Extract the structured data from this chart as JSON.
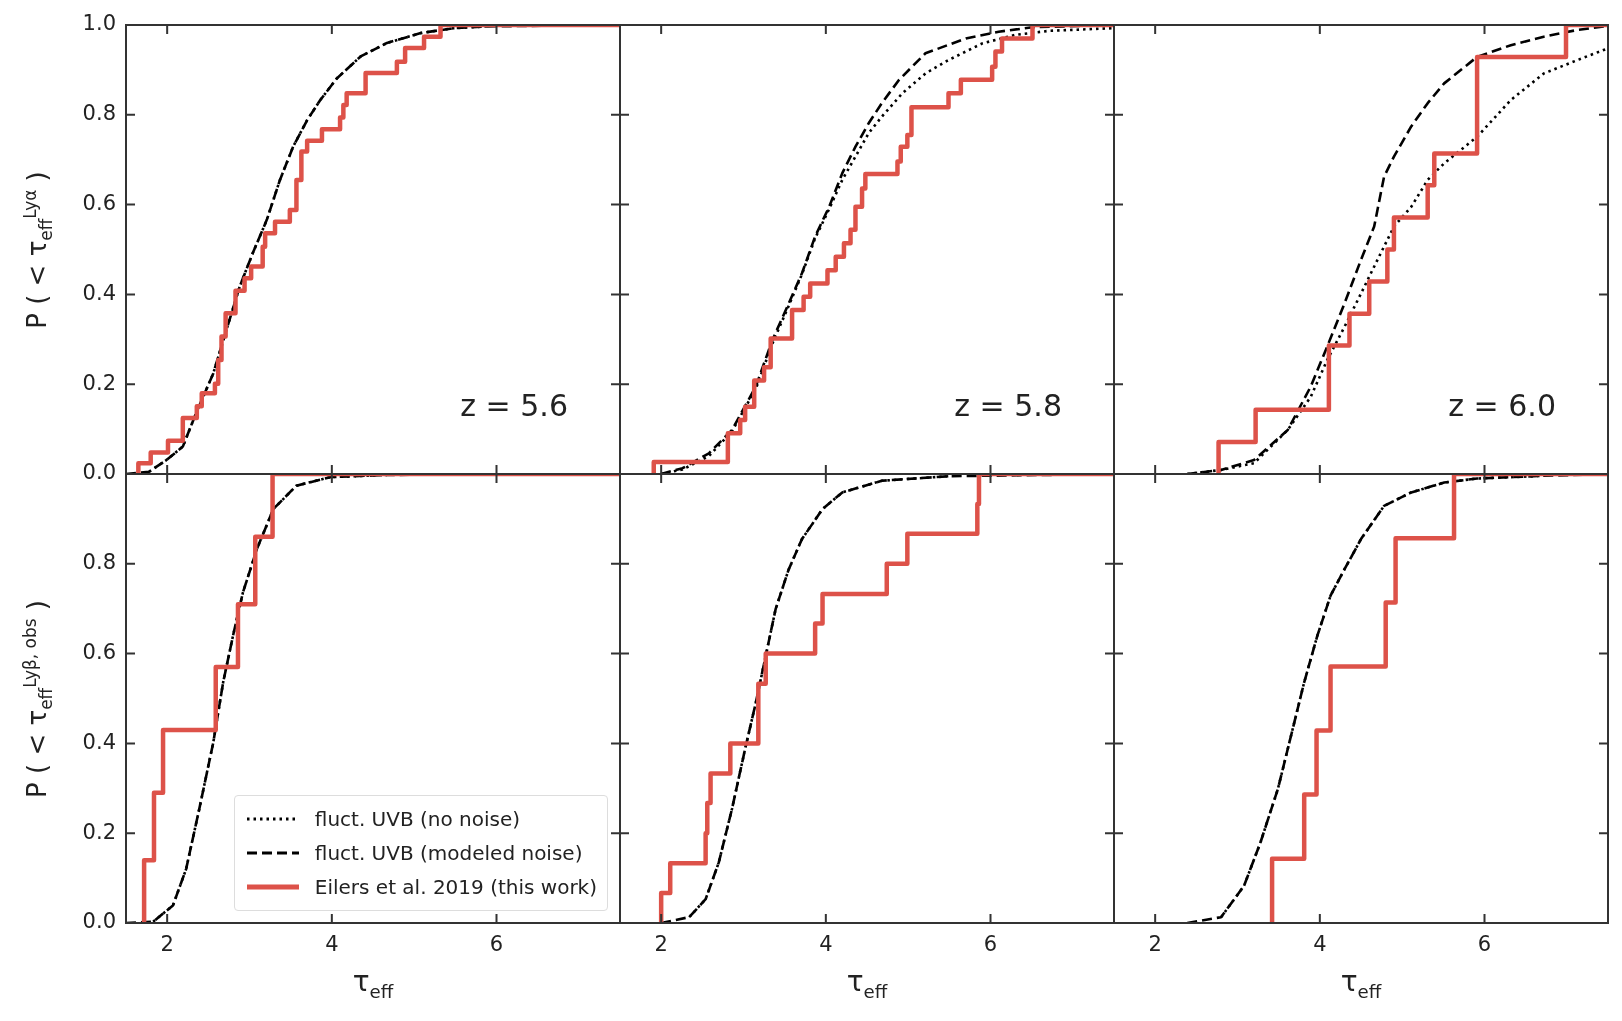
{
  "chart_data": [
    {
      "type": "line",
      "ylabel": "P ( < τ$_{eff}$$^{Lyα}$ )",
      "xlim": [
        1.5,
        7.5
      ],
      "xticks": [
        2,
        4,
        6
      ],
      "ylim": [
        0,
        1
      ],
      "yticks": [
        {
          "value": 0,
          "label": "0.0"
        },
        {
          "value": 0.2,
          "label": "0.2"
        },
        {
          "value": 0.4,
          "label": "0.4"
        },
        {
          "value": 0.6,
          "label": "0.6"
        },
        {
          "value": 0.8,
          "label": "0.8"
        },
        {
          "value": 1,
          "label": "1.0"
        }
      ],
      "tick_labels": "y",
      "annotations": [
        "z = 5.6"
      ],
      "series": [
        {
          "type": "line",
          "line_style": "dotted",
          "color": "#000000",
          "x": [
            1.78,
            1.99,
            2.19,
            2.35,
            2.56,
            2.72,
            2.88,
            3.04,
            3.21,
            3.37,
            3.53,
            3.7,
            3.86,
            4.06,
            4.35,
            4.67,
            5.08,
            5.48,
            5.89
          ],
          "values": [
            0.005,
            0.031,
            0.061,
            0.135,
            0.224,
            0.321,
            0.417,
            0.492,
            0.566,
            0.655,
            0.729,
            0.788,
            0.833,
            0.881,
            0.93,
            0.96,
            0.982,
            0.993,
            0.997
          ]
        },
        {
          "type": "line",
          "line_style": "dashed",
          "color": "#000000",
          "x": [
            1.5,
            1.78,
            1.99,
            2.19,
            2.35,
            2.56,
            2.72,
            2.88,
            3.04,
            3.21,
            3.37,
            3.53,
            3.7,
            3.86,
            4.06,
            4.35,
            4.67,
            5.08,
            5.48,
            5.89,
            7.5
          ],
          "values": [
            0,
            0.005,
            0.031,
            0.061,
            0.135,
            0.224,
            0.321,
            0.417,
            0.492,
            0.566,
            0.655,
            0.729,
            0.788,
            0.833,
            0.881,
            0.93,
            0.96,
            0.982,
            0.993,
            0.997,
            1.0
          ]
        },
        {
          "type": "step",
          "line_style": "solid",
          "color": "#dd5249",
          "x": [
            1.65,
            1.65,
            1.8,
            2.01,
            2.19,
            2.36,
            2.42,
            2.58,
            2.62,
            2.66,
            2.71,
            2.83,
            2.94,
            3.02,
            3.16,
            3.19,
            3.31,
            3.49,
            3.57,
            3.63,
            3.7,
            3.88,
            4.1,
            4.14,
            4.18,
            4.41,
            4.79,
            4.89,
            5.12,
            5.32,
            7.5
          ],
          "values": [
            0,
            0.024,
            0.048,
            0.074,
            0.125,
            0.151,
            0.18,
            0.201,
            0.254,
            0.306,
            0.358,
            0.408,
            0.436,
            0.462,
            0.506,
            0.536,
            0.562,
            0.588,
            0.655,
            0.718,
            0.742,
            0.768,
            0.794,
            0.822,
            0.848,
            0.893,
            0.918,
            0.949,
            0.974,
            1.0,
            1.0
          ]
        }
      ]
    },
    {
      "type": "line",
      "xlim": [
        1.5,
        7.5
      ],
      "xticks": [
        2,
        4,
        6
      ],
      "ylim": [
        0,
        1
      ],
      "yticks": [
        0,
        0.2,
        0.4,
        0.6,
        0.8,
        1
      ],
      "tick_labels": false,
      "annotations": [
        "z = 5.8"
      ],
      "series": [
        {
          "type": "line",
          "line_style": "dotted",
          "color": "#000000",
          "x": [
            2.0,
            2.26,
            2.58,
            2.86,
            3.15,
            3.35,
            3.55,
            3.71,
            3.87,
            4.04,
            4.2,
            4.36,
            4.52,
            4.68,
            4.93,
            5.21,
            5.49,
            5.9,
            6.3,
            6.71,
            7.5
          ],
          "values": [
            0,
            0.01,
            0.04,
            0.095,
            0.19,
            0.29,
            0.375,
            0.445,
            0.525,
            0.59,
            0.655,
            0.707,
            0.759,
            0.796,
            0.848,
            0.892,
            0.922,
            0.959,
            0.978,
            0.987,
            0.993
          ]
        },
        {
          "type": "line",
          "line_style": "dashed",
          "color": "#000000",
          "x": [
            2.0,
            2.26,
            2.58,
            2.86,
            3.15,
            3.35,
            3.55,
            3.71,
            3.87,
            4.04,
            4.2,
            4.36,
            4.52,
            4.68,
            4.89,
            5.21,
            5.7,
            6.1,
            6.51,
            7.5
          ],
          "values": [
            0,
            0.013,
            0.046,
            0.098,
            0.195,
            0.298,
            0.38,
            0.447,
            0.529,
            0.595,
            0.67,
            0.729,
            0.781,
            0.826,
            0.878,
            0.937,
            0.97,
            0.985,
            0.995,
            1.0
          ]
        },
        {
          "type": "step",
          "line_style": "solid",
          "color": "#dd5249",
          "x": [
            1.91,
            1.91,
            2.81,
            2.96,
            3.02,
            3.13,
            3.25,
            3.33,
            3.59,
            3.73,
            3.81,
            4.02,
            4.12,
            4.22,
            4.3,
            4.36,
            4.44,
            4.48,
            4.87,
            4.91,
            4.99,
            5.04,
            5.49,
            5.64,
            6.02,
            6.06,
            6.14,
            6.51,
            7.5
          ],
          "values": [
            0,
            0.027,
            0.091,
            0.12,
            0.15,
            0.208,
            0.238,
            0.302,
            0.365,
            0.395,
            0.424,
            0.454,
            0.484,
            0.514,
            0.544,
            0.595,
            0.636,
            0.668,
            0.696,
            0.729,
            0.755,
            0.817,
            0.848,
            0.878,
            0.907,
            0.941,
            0.97,
            1.0,
            1.0
          ]
        }
      ]
    },
    {
      "type": "line",
      "xlim": [
        1.5,
        7.5
      ],
      "xticks": [
        2,
        4,
        6
      ],
      "ylim": [
        0,
        1
      ],
      "yticks": [
        0,
        0.2,
        0.4,
        0.6,
        0.8,
        1
      ],
      "tick_labels": false,
      "annotations": [
        "z = 6.0"
      ],
      "series": [
        {
          "type": "line",
          "line_style": "dotted",
          "color": "#000000",
          "x": [
            2.39,
            2.8,
            3.2,
            3.61,
            3.89,
            4.09,
            4.3,
            4.5,
            4.7,
            4.9,
            5.11,
            5.31,
            5.51,
            5.91,
            6.32,
            6.72,
            7.13,
            7.5
          ],
          "values": [
            0,
            0.009,
            0.024,
            0.098,
            0.172,
            0.254,
            0.328,
            0.402,
            0.477,
            0.551,
            0.595,
            0.655,
            0.692,
            0.751,
            0.833,
            0.892,
            0.922,
            0.948
          ]
        },
        {
          "type": "line",
          "line_style": "dashed",
          "color": "#000000",
          "x": [
            2.39,
            2.8,
            3.2,
            3.61,
            3.89,
            4.09,
            4.3,
            4.5,
            4.66,
            4.78,
            4.9,
            5.11,
            5.31,
            5.51,
            5.91,
            6.32,
            6.72,
            7.13,
            7.5
          ],
          "values": [
            0,
            0.009,
            0.031,
            0.098,
            0.195,
            0.284,
            0.38,
            0.477,
            0.551,
            0.662,
            0.707,
            0.774,
            0.826,
            0.87,
            0.929,
            0.955,
            0.974,
            0.989,
            0.998
          ]
        },
        {
          "type": "step",
          "line_style": "solid",
          "color": "#dd5249",
          "x": [
            2.77,
            2.77,
            3.22,
            4.11,
            4.36,
            4.6,
            4.82,
            4.9,
            5.31,
            5.39,
            5.91,
            6.99,
            7.5
          ],
          "values": [
            0,
            0.071,
            0.143,
            0.286,
            0.357,
            0.429,
            0.5,
            0.571,
            0.643,
            0.714,
            0.929,
            1.0,
            1.0
          ]
        }
      ]
    },
    {
      "type": "line",
      "ylabel": "P ( < τ$_{eff}$$^{Lyβ, obs}$ )",
      "xlabel": "τ$_{eff}$",
      "xlim": [
        1.5,
        7.5
      ],
      "xticks": [
        2,
        4,
        6
      ],
      "ylim": [
        0,
        1
      ],
      "yticks": [
        {
          "value": 0,
          "label": "0.0"
        },
        {
          "value": 0.2,
          "label": "0.2"
        },
        {
          "value": 0.4,
          "label": "0.4"
        },
        {
          "value": 0.6,
          "label": "0.6"
        },
        {
          "value": 0.8,
          "label": "0.8"
        },
        {
          "value": 1,
          "label": null
        }
      ],
      "legend": "bottom right",
      "series": [
        {
          "type": "line",
          "name": "fluct. UVB (no noise)",
          "line_style": "dotted",
          "color": "#000000",
          "x": [
            1.83,
            2.07,
            2.23,
            2.39,
            2.56,
            2.68,
            2.8,
            2.92,
            3.09,
            3.29,
            3.57,
            3.98,
            4.67
          ],
          "values": [
            0.003,
            0.039,
            0.12,
            0.254,
            0.402,
            0.536,
            0.64,
            0.736,
            0.833,
            0.922,
            0.974,
            0.993,
            0.998
          ]
        },
        {
          "type": "line",
          "name": "fluct. UVB (modeled noise)",
          "line_style": "dashed",
          "color": "#000000",
          "x": [
            1.5,
            1.83,
            2.07,
            2.23,
            2.39,
            2.56,
            2.68,
            2.8,
            2.92,
            3.09,
            3.29,
            3.57,
            3.98,
            4.67,
            7.5
          ],
          "values": [
            0,
            0.003,
            0.039,
            0.12,
            0.254,
            0.402,
            0.536,
            0.64,
            0.736,
            0.833,
            0.922,
            0.974,
            0.993,
            0.998,
            1.0
          ]
        },
        {
          "type": "step",
          "name": "Eilers et al. 2019 (this work)",
          "line_style": "solid",
          "color": "#dd5249",
          "x": [
            1.72,
            1.72,
            1.84,
            1.95,
            2.59,
            2.86,
            3.07,
            3.28,
            7.5
          ],
          "values": [
            0,
            0.14,
            0.29,
            0.43,
            0.57,
            0.71,
            0.86,
            1.0,
            1.0
          ]
        }
      ]
    },
    {
      "type": "line",
      "xlabel": "τ$_{eff}$",
      "xlim": [
        1.5,
        7.5
      ],
      "xticks": [
        2,
        4,
        6
      ],
      "ylim": [
        0,
        1
      ],
      "yticks": [
        0,
        0.2,
        0.4,
        0.6,
        0.8,
        1
      ],
      "tick_labels": "x",
      "series": [
        {
          "type": "line",
          "line_style": "dotted",
          "color": "#000000",
          "x": [
            2.34,
            2.54,
            2.7,
            2.86,
            3.02,
            3.15,
            3.27,
            3.39,
            3.55,
            3.71,
            3.96,
            4.2,
            4.68,
            5.49
          ],
          "values": [
            0.013,
            0.053,
            0.135,
            0.254,
            0.388,
            0.491,
            0.595,
            0.699,
            0.788,
            0.855,
            0.922,
            0.959,
            0.985,
            0.995
          ]
        },
        {
          "type": "line",
          "line_style": "dashed",
          "color": "#000000",
          "x": [
            2.0,
            2.34,
            2.54,
            2.7,
            2.86,
            3.02,
            3.15,
            3.27,
            3.39,
            3.55,
            3.71,
            3.96,
            4.2,
            4.68,
            5.49,
            7.5
          ],
          "values": [
            0,
            0.013,
            0.053,
            0.135,
            0.254,
            0.388,
            0.491,
            0.595,
            0.699,
            0.788,
            0.855,
            0.922,
            0.959,
            0.985,
            0.995,
            1.0
          ]
        },
        {
          "type": "step",
          "line_style": "solid",
          "color": "#dd5249",
          "x": [
            2.0,
            2.0,
            2.11,
            2.54,
            2.56,
            2.6,
            2.84,
            3.18,
            3.27,
            3.87,
            3.96,
            4.74,
            4.99,
            5.84,
            5.86,
            7.5
          ],
          "values": [
            0,
            0.067,
            0.133,
            0.2,
            0.267,
            0.333,
            0.4,
            0.533,
            0.6,
            0.667,
            0.733,
            0.8,
            0.867,
            0.933,
            1.0,
            1.0
          ]
        }
      ]
    },
    {
      "type": "line",
      "xlabel": "τ$_{eff}$",
      "xlim": [
        1.5,
        7.5
      ],
      "xticks": [
        2,
        4,
        6
      ],
      "ylim": [
        0,
        1
      ],
      "yticks": [
        0,
        0.2,
        0.4,
        0.6,
        0.8,
        1
      ],
      "tick_labels": "x",
      "series": [
        {
          "type": "line",
          "line_style": "dotted",
          "color": "#000000",
          "x": [
            2.8,
            3.08,
            3.28,
            3.49,
            3.65,
            3.81,
            3.97,
            4.13,
            4.3,
            4.5,
            4.78,
            5.11,
            5.51,
            5.91,
            6.72
          ],
          "values": [
            0.013,
            0.083,
            0.18,
            0.298,
            0.417,
            0.536,
            0.64,
            0.729,
            0.788,
            0.855,
            0.929,
            0.959,
            0.981,
            0.99,
            0.996
          ]
        },
        {
          "type": "line",
          "line_style": "dashed",
          "color": "#000000",
          "x": [
            2.39,
            2.8,
            3.08,
            3.28,
            3.49,
            3.65,
            3.81,
            3.97,
            4.13,
            4.3,
            4.5,
            4.78,
            5.11,
            5.51,
            5.91,
            6.72,
            7.5
          ],
          "values": [
            0,
            0.013,
            0.083,
            0.18,
            0.298,
            0.417,
            0.536,
            0.64,
            0.729,
            0.788,
            0.855,
            0.929,
            0.959,
            0.981,
            0.99,
            0.996,
            1.0
          ]
        },
        {
          "type": "step",
          "line_style": "solid",
          "color": "#dd5249",
          "x": [
            3.42,
            3.42,
            3.81,
            3.96,
            4.13,
            4.8,
            4.92,
            5.63,
            7.5
          ],
          "values": [
            0,
            0.143,
            0.286,
            0.429,
            0.571,
            0.714,
            0.857,
            1.0,
            1.0
          ]
        }
      ]
    }
  ]
}
